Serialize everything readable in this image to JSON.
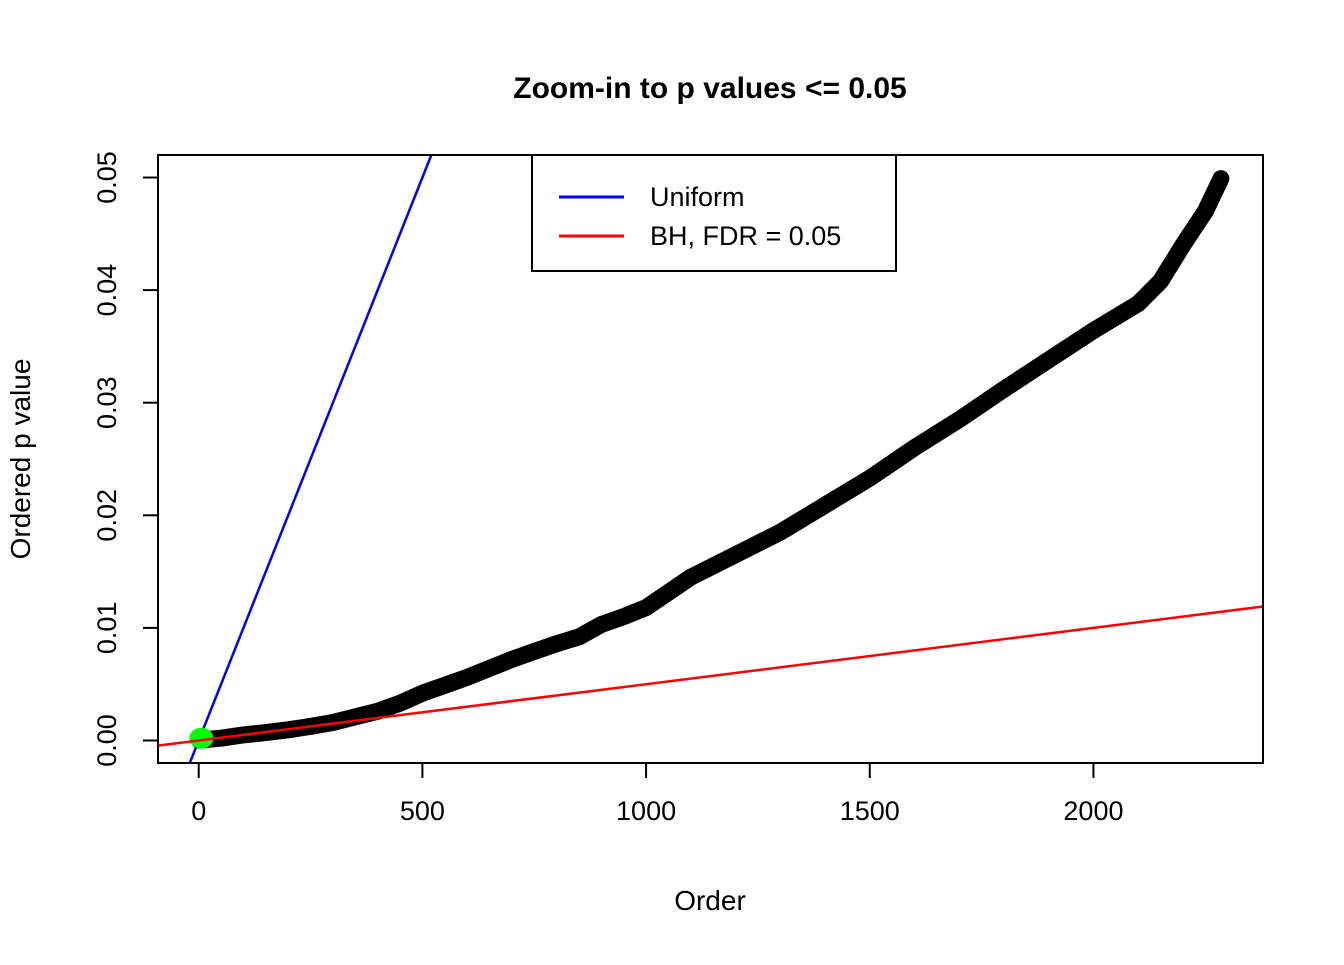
{
  "chart_data": {
    "type": "scatter",
    "title": "Zoom-in to p values <= 0.05",
    "xlabel": "Order",
    "ylabel": "Ordered p value",
    "grid": false,
    "axes": {
      "xlim": [
        -91,
        2379
      ],
      "ylim": [
        -0.002,
        0.052
      ],
      "x_ticks": [
        0,
        500,
        1000,
        1500,
        2000
      ],
      "y_ticks": [
        0.0,
        0.01,
        0.02,
        0.03,
        0.04,
        0.05
      ],
      "y_tick_labels": [
        "0.00",
        "0.01",
        "0.02",
        "0.03",
        "0.04",
        "0.05"
      ]
    },
    "series": [
      {
        "name": "ordered-p-values",
        "kind": "thick-point-curve",
        "color": "#000000",
        "points": [
          [
            1,
            3e-05
          ],
          [
            50,
            0.0002
          ],
          [
            100,
            0.0005
          ],
          [
            150,
            0.0007
          ],
          [
            200,
            0.00095
          ],
          [
            250,
            0.00125
          ],
          [
            300,
            0.0016
          ],
          [
            350,
            0.0021
          ],
          [
            400,
            0.0026
          ],
          [
            450,
            0.0033
          ],
          [
            500,
            0.0042
          ],
          [
            550,
            0.0049
          ],
          [
            600,
            0.0056
          ],
          [
            650,
            0.0064
          ],
          [
            700,
            0.0072
          ],
          [
            750,
            0.0079
          ],
          [
            800,
            0.0086
          ],
          [
            850,
            0.0092
          ],
          [
            900,
            0.0103
          ],
          [
            950,
            0.011
          ],
          [
            1000,
            0.0118
          ],
          [
            1100,
            0.0145
          ],
          [
            1200,
            0.0165
          ],
          [
            1300,
            0.0185
          ],
          [
            1400,
            0.0209
          ],
          [
            1500,
            0.0233
          ],
          [
            1600,
            0.026
          ],
          [
            1700,
            0.0285
          ],
          [
            1800,
            0.0312
          ],
          [
            1900,
            0.0338
          ],
          [
            2000,
            0.0364
          ],
          [
            2100,
            0.0388
          ],
          [
            2150,
            0.0408
          ],
          [
            2200,
            0.044
          ],
          [
            2250,
            0.047
          ],
          [
            2285,
            0.0499
          ]
        ]
      },
      {
        "name": "uniform-line",
        "kind": "abline",
        "color": "#0000FF",
        "intercept": 0,
        "slope": 0.0001
      },
      {
        "name": "bh-fdr-line",
        "kind": "abline",
        "color": "#FF0000",
        "intercept": 0,
        "slope": 5e-06
      },
      {
        "name": "bh-significant-points",
        "kind": "highlight-point",
        "color": "#00FF00",
        "x": 6,
        "y": 0.0002
      }
    ],
    "legend": {
      "position": "top",
      "entries": [
        {
          "label": "Uniform",
          "color": "#0000FF"
        },
        {
          "label": "BH, FDR = 0.05",
          "color": "#FF0000"
        }
      ]
    }
  }
}
